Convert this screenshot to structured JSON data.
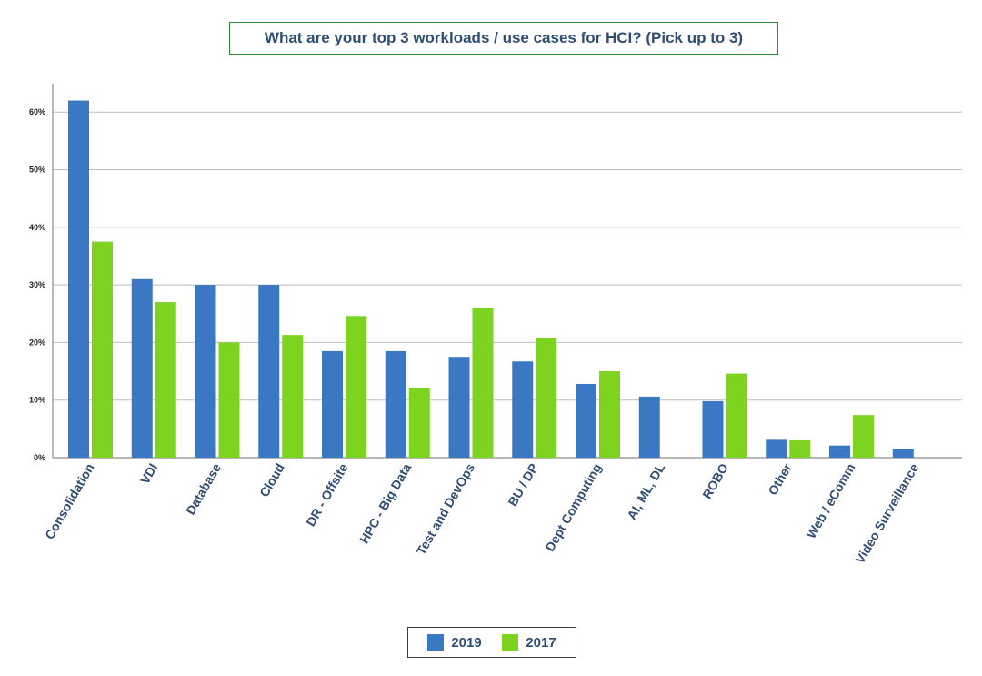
{
  "chart_data": {
    "type": "bar",
    "title": "What are your top 3 workloads / use cases for HCI? (Pick up to 3)",
    "categories": [
      "Consolidation",
      "VDI",
      "Database",
      "Cloud",
      "DR - Offsite",
      "HPC - Big Data",
      "Test and DevOps",
      "BU / DP",
      "Dept Computing",
      "AI, ML, DL",
      "ROBO",
      "Other",
      "Web / eComm",
      "Video Surveillance"
    ],
    "series": [
      {
        "name": "2019",
        "color": "#3a78c3",
        "values": [
          62,
          31,
          30,
          30,
          18.5,
          18.5,
          17.5,
          16.7,
          12.8,
          10.6,
          9.8,
          3.1,
          2.1,
          1.5
        ]
      },
      {
        "name": "2017",
        "color": "#7ed321",
        "values": [
          37.5,
          27,
          20,
          21.3,
          24.6,
          12.1,
          26,
          20.8,
          15,
          null,
          14.6,
          3,
          7.4,
          null
        ]
      }
    ],
    "yticks": [
      "0%",
      "10%",
      "20%",
      "30%",
      "40%",
      "50%",
      "60%"
    ],
    "ylim": [
      0,
      65
    ],
    "grid": true,
    "legend_position": "bottom"
  }
}
